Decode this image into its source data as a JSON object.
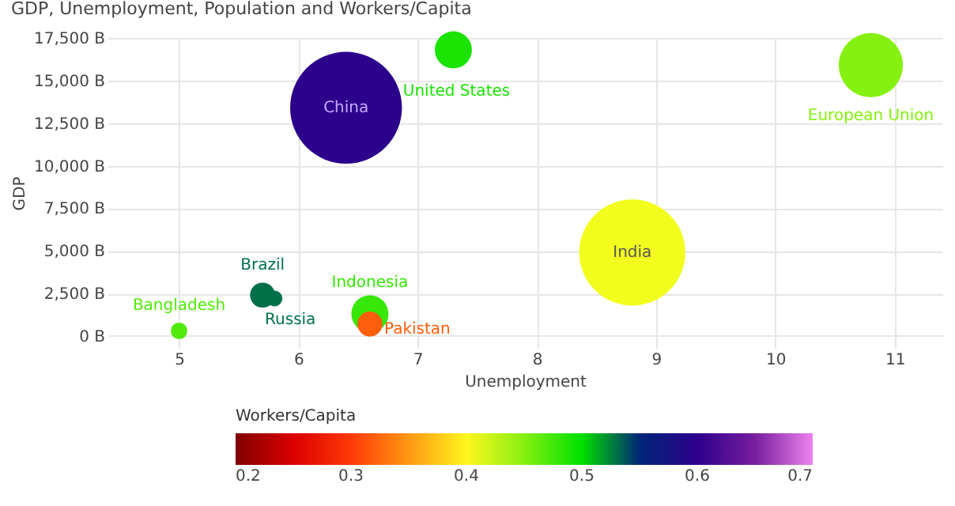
{
  "chart_data": {
    "type": "bubble",
    "title": "GDP, Unemployment, Population and Workers/Capita",
    "xlabel": "Unemployment",
    "ylabel": "GDP",
    "clabel": "Workers/Capita",
    "series": [
      {
        "name": "China",
        "x": [
          6.4
        ],
        "values": [
          13400
        ],
        "sizes": [
          1
        ],
        "cvalues": [
          0.6
        ]
      },
      {
        "name": "India",
        "x": [
          8.8
        ],
        "values": [
          4900
        ],
        "sizes": [
          0.9
        ],
        "cvalues": [
          0.41
        ]
      },
      {
        "name": "European Union",
        "x": [
          10.8
        ],
        "values": [
          15900
        ],
        "sizes": [
          0.33
        ],
        "cvalues": [
          0.45
        ]
      },
      {
        "name": "United States",
        "x": [
          7.3
        ],
        "values": [
          16800
        ],
        "sizes": [
          0.11
        ],
        "cvalues": [
          0.49
        ]
      },
      {
        "name": "Indonesia",
        "x": [
          6.6
        ],
        "values": [
          1300
        ],
        "sizes": [
          0.11
        ],
        "cvalues": [
          0.48
        ]
      },
      {
        "name": "Russia",
        "x": [
          5.8
        ],
        "values": [
          2200
        ],
        "sizes": [
          0.02
        ],
        "cvalues": [
          0.53
        ]
      },
      {
        "name": "Brazil",
        "x": [
          5.7
        ],
        "values": [
          2400
        ],
        "sizes": [
          0.05
        ],
        "cvalues": [
          0.53
        ]
      },
      {
        "name": "Pakistan",
        "x": [
          6.6
        ],
        "values": [
          700
        ],
        "sizes": [
          0.05
        ],
        "cvalues": [
          0.32
        ]
      },
      {
        "name": "Bangladesh",
        "x": [
          5.0
        ],
        "values": [
          300
        ],
        "sizes": [
          0.022
        ],
        "cvalues": [
          0.47
        ]
      }
    ],
    "xlim": [
      4.4,
      11.4
    ],
    "xticks": [
      5,
      6,
      7,
      8,
      9,
      10,
      11
    ],
    "ylim": [
      -700,
      17500
    ],
    "yticks": [
      {
        "value": 0,
        "label": "0 B"
      },
      {
        "value": 2500,
        "label": "2,500 B"
      },
      {
        "value": 5000,
        "label": "5,000 B"
      },
      {
        "value": 7500,
        "label": "7,500 B"
      },
      {
        "value": 10000,
        "label": "10,000 B"
      },
      {
        "value": 12500,
        "label": "12,500 B"
      },
      {
        "value": 15000,
        "label": "15,000 B"
      },
      {
        "value": 17500,
        "label": "17,500 B"
      }
    ],
    "clim": [
      0.2,
      0.7
    ],
    "cticks": [
      0.2,
      0.3,
      0.4,
      0.5,
      0.6,
      0.7
    ],
    "grid": true
  }
}
